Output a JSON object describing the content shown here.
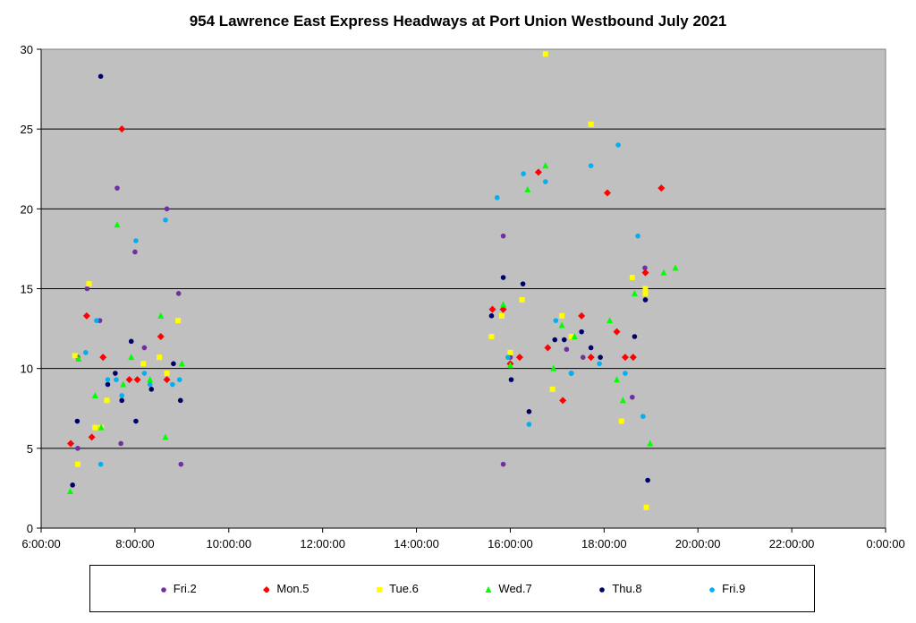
{
  "chart_data": {
    "type": "scatter",
    "title": "954 Lawrence East Express Headways at Port Union Westbound July 2021",
    "xlabel": "",
    "ylabel": "",
    "x_unit": "time of day (hours)",
    "xlim": [
      6,
      24
    ],
    "ylim": [
      0,
      30
    ],
    "x_ticks": [
      "6:00:00",
      "8:00:00",
      "10:00:00",
      "12:00:00",
      "14:00:00",
      "16:00:00",
      "18:00:00",
      "20:00:00",
      "22:00:00",
      "0:00:00"
    ],
    "y_ticks": [
      "0",
      "5",
      "10",
      "15",
      "20",
      "25",
      "30"
    ],
    "grid": "horizontal",
    "legend_position": "bottom",
    "series": [
      {
        "name": "Fri.2",
        "color": "#7030a0",
        "marker": "circle",
        "points": [
          [
            6.78,
            5.0
          ],
          [
            6.78,
            10.7
          ],
          [
            6.98,
            15.0
          ],
          [
            7.25,
            13.0
          ],
          [
            7.62,
            21.3
          ],
          [
            7.7,
            5.3
          ],
          [
            8.0,
            17.3
          ],
          [
            8.2,
            11.3
          ],
          [
            8.68,
            20.0
          ],
          [
            8.93,
            14.7
          ],
          [
            8.98,
            4.0
          ],
          [
            15.85,
            18.3
          ],
          [
            15.85,
            4.0
          ],
          [
            16.0,
            10.7
          ],
          [
            17.2,
            11.2
          ],
          [
            17.55,
            10.7
          ],
          [
            18.6,
            8.2
          ],
          [
            18.87,
            16.3
          ]
        ]
      },
      {
        "name": "Mon.5",
        "color": "#ff0000",
        "marker": "diamond",
        "points": [
          [
            6.63,
            5.3
          ],
          [
            6.97,
            13.3
          ],
          [
            7.08,
            5.7
          ],
          [
            7.32,
            10.7
          ],
          [
            7.72,
            25.0
          ],
          [
            7.88,
            9.3
          ],
          [
            8.05,
            9.3
          ],
          [
            8.55,
            12.0
          ],
          [
            8.68,
            9.3
          ],
          [
            15.62,
            13.7
          ],
          [
            15.85,
            13.7
          ],
          [
            16.0,
            10.3
          ],
          [
            16.2,
            10.7
          ],
          [
            16.6,
            22.3
          ],
          [
            16.8,
            11.3
          ],
          [
            17.12,
            8.0
          ],
          [
            17.52,
            13.3
          ],
          [
            17.72,
            10.7
          ],
          [
            18.07,
            21.0
          ],
          [
            18.27,
            12.3
          ],
          [
            18.45,
            10.7
          ],
          [
            18.62,
            10.7
          ],
          [
            18.88,
            16.0
          ],
          [
            19.22,
            21.3
          ]
        ]
      },
      {
        "name": "Tue.6",
        "color": "#ffff00",
        "marker": "square",
        "points": [
          [
            6.72,
            10.8
          ],
          [
            6.78,
            4.0
          ],
          [
            7.02,
            15.3
          ],
          [
            7.15,
            6.3
          ],
          [
            7.28,
            6.3
          ],
          [
            7.4,
            8.0
          ],
          [
            8.18,
            10.3
          ],
          [
            8.52,
            10.7
          ],
          [
            8.68,
            9.7
          ],
          [
            8.92,
            13.0
          ],
          [
            15.6,
            12.0
          ],
          [
            15.82,
            13.3
          ],
          [
            16.0,
            11.0
          ],
          [
            16.25,
            14.3
          ],
          [
            16.75,
            29.7
          ],
          [
            16.9,
            8.7
          ],
          [
            17.1,
            13.3
          ],
          [
            17.3,
            12.0
          ],
          [
            17.72,
            25.3
          ],
          [
            18.37,
            6.7
          ],
          [
            18.6,
            15.7
          ],
          [
            18.88,
            14.7
          ],
          [
            18.88,
            15.0
          ],
          [
            18.9,
            1.3
          ]
        ]
      },
      {
        "name": "Wed.7",
        "color": "#00ff00",
        "marker": "triangle",
        "points": [
          [
            6.62,
            2.3
          ],
          [
            6.8,
            10.6
          ],
          [
            7.15,
            8.3
          ],
          [
            7.28,
            6.3
          ],
          [
            7.62,
            19.0
          ],
          [
            7.75,
            9.0
          ],
          [
            7.92,
            10.7
          ],
          [
            8.32,
            9.3
          ],
          [
            8.55,
            13.3
          ],
          [
            8.65,
            5.7
          ],
          [
            9.0,
            10.3
          ],
          [
            15.85,
            14.0
          ],
          [
            16.0,
            10.2
          ],
          [
            16.37,
            21.2
          ],
          [
            16.75,
            22.7
          ],
          [
            16.92,
            10.0
          ],
          [
            17.1,
            12.7
          ],
          [
            17.37,
            12.0
          ],
          [
            18.12,
            13.0
          ],
          [
            18.27,
            9.3
          ],
          [
            18.4,
            8.0
          ],
          [
            18.65,
            14.7
          ],
          [
            18.98,
            5.3
          ],
          [
            19.27,
            16.0
          ],
          [
            19.52,
            16.3
          ]
        ]
      },
      {
        "name": "Thu.8",
        "color": "#000066",
        "marker": "circle",
        "points": [
          [
            6.67,
            2.7
          ],
          [
            6.77,
            6.7
          ],
          [
            7.27,
            28.3
          ],
          [
            7.42,
            9.0
          ],
          [
            7.58,
            9.7
          ],
          [
            7.72,
            8.0
          ],
          [
            7.92,
            11.7
          ],
          [
            8.02,
            6.7
          ],
          [
            8.35,
            8.7
          ],
          [
            8.82,
            10.3
          ],
          [
            8.97,
            8.0
          ],
          [
            15.6,
            13.3
          ],
          [
            15.85,
            15.7
          ],
          [
            16.02,
            9.3
          ],
          [
            16.27,
            15.3
          ],
          [
            16.4,
            7.3
          ],
          [
            16.95,
            11.8
          ],
          [
            17.15,
            11.8
          ],
          [
            17.3,
            9.7
          ],
          [
            17.52,
            12.3
          ],
          [
            17.72,
            11.3
          ],
          [
            17.92,
            10.7
          ],
          [
            18.65,
            12.0
          ],
          [
            18.88,
            14.3
          ],
          [
            18.93,
            3.0
          ]
        ]
      },
      {
        "name": "Fri.9",
        "color": "#00b0f0",
        "marker": "circle",
        "points": [
          [
            6.95,
            11.0
          ],
          [
            7.18,
            13.0
          ],
          [
            7.27,
            4.0
          ],
          [
            7.42,
            9.3
          ],
          [
            7.6,
            9.3
          ],
          [
            7.72,
            8.3
          ],
          [
            8.02,
            18.0
          ],
          [
            8.2,
            9.7
          ],
          [
            8.32,
            9.0
          ],
          [
            8.65,
            19.3
          ],
          [
            8.8,
            9.0
          ],
          [
            8.95,
            9.3
          ],
          [
            15.72,
            20.7
          ],
          [
            15.95,
            10.7
          ],
          [
            16.28,
            22.2
          ],
          [
            16.4,
            6.5
          ],
          [
            16.75,
            21.7
          ],
          [
            16.97,
            13.0
          ],
          [
            17.3,
            9.7
          ],
          [
            17.72,
            22.7
          ],
          [
            17.9,
            10.3
          ],
          [
            18.3,
            24.0
          ],
          [
            18.45,
            9.7
          ],
          [
            18.72,
            18.3
          ],
          [
            18.83,
            7.0
          ]
        ]
      }
    ]
  }
}
